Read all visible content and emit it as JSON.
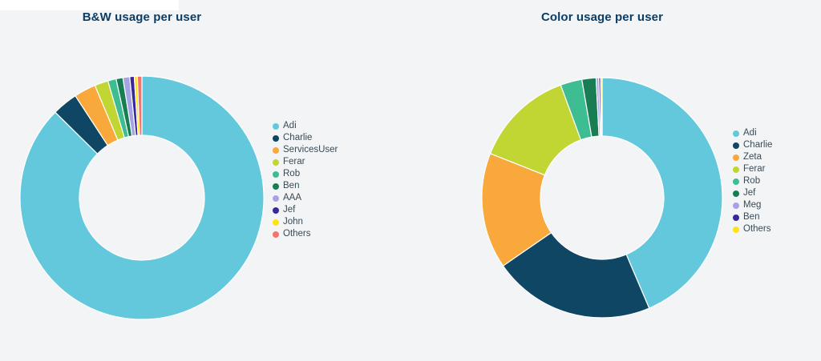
{
  "page": {
    "background_color": "#F2F4F6",
    "title_color": "#0C3D64",
    "legend_text_color": "#3A4B55",
    "slice_border_color": "#FFFFFF"
  },
  "chart_data": [
    {
      "type": "pie",
      "subtype": "donut",
      "title": "B&W usage per user",
      "legend_position": "right",
      "start_angle_deg": 0,
      "labels": [
        "Adi",
        "Charlie",
        "ServicesUser",
        "Ferar",
        "Rob",
        "Ben",
        "AAA",
        "Jef",
        "John",
        "Others"
      ],
      "values_percent": [
        87.4,
        3.4,
        2.9,
        1.8,
        1.1,
        0.9,
        0.9,
        0.6,
        0.4,
        0.6
      ],
      "colors": [
        "#63C8DB",
        "#0E4664",
        "#F9A83B",
        "#C1D632",
        "#3EBD92",
        "#187D52",
        "#A5A3E6",
        "#38289C",
        "#FFE117",
        "#F4736E"
      ]
    },
    {
      "type": "pie",
      "subtype": "donut",
      "title": "Color usage per user",
      "legend_position": "right",
      "start_angle_deg": 0,
      "labels": [
        "Adi",
        "Charlie",
        "Zeta",
        "Ferar",
        "Rob",
        "Jef",
        "Meg",
        "Ben",
        "Others"
      ],
      "values_percent": [
        43.6,
        21.8,
        15.6,
        13.4,
        2.9,
        1.9,
        0.35,
        0.25,
        0.2
      ],
      "colors": [
        "#63C8DB",
        "#0E4664",
        "#F9A83B",
        "#C1D632",
        "#3EBD92",
        "#187D52",
        "#A5A3E6",
        "#38289C",
        "#FFE117"
      ]
    }
  ],
  "geometry": {
    "outer_radius": [
      152,
      150
    ],
    "inner_radius": [
      78,
      77
    ]
  }
}
